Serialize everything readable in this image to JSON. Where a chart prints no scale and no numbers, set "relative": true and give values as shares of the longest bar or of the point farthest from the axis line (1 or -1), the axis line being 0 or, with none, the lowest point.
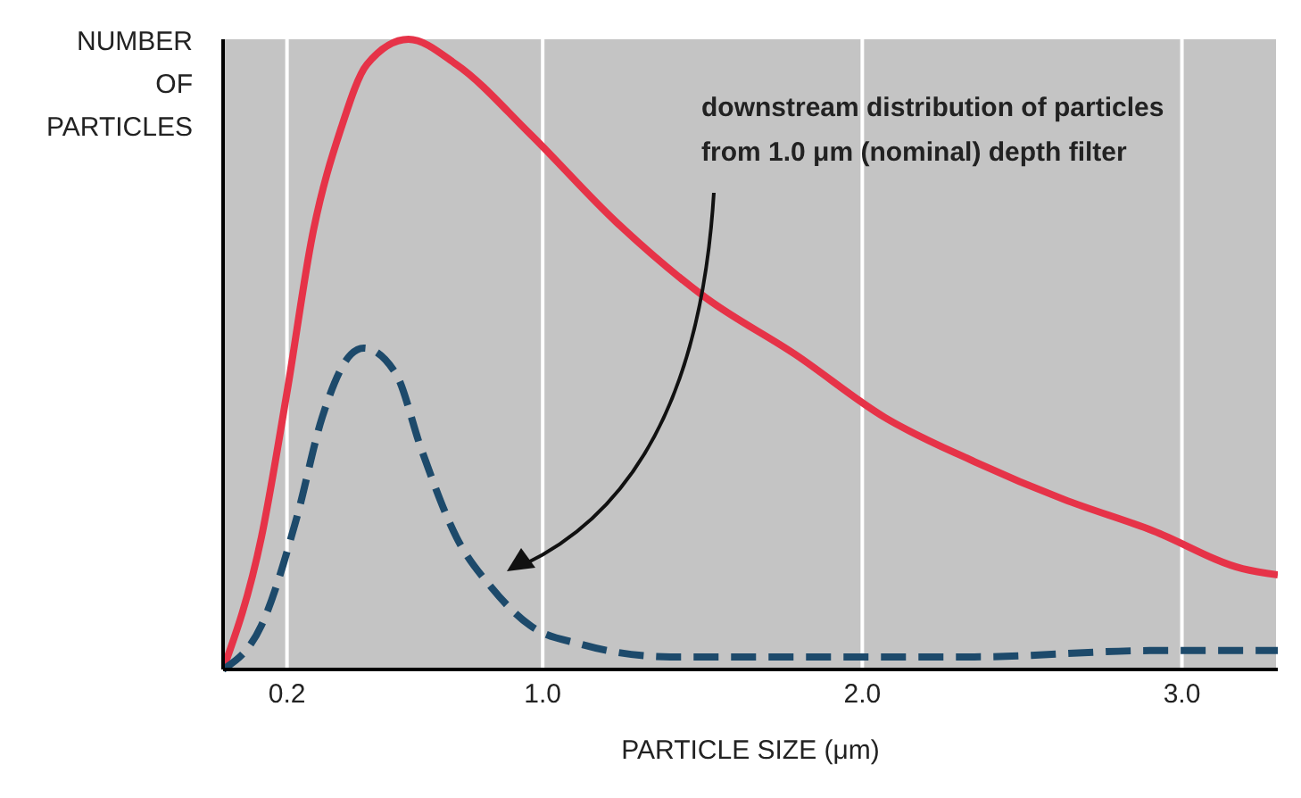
{
  "chart_data": {
    "type": "line",
    "relative": true,
    "xlabel": "PARTICLE SIZE (μm)",
    "ylabel": "NUMBER OF PARTICLES",
    "xlim": [
      0,
      3.3
    ],
    "xticks": [
      0.2,
      {
        "value": 1,
        "label": "1.0"
      },
      {
        "value": 2,
        "label": "2.0"
      },
      {
        "value": 3,
        "label": "3.0"
      }
    ],
    "grid": "x",
    "marker": "none",
    "annotations": [
      "downstream distribution of particles from 1.0 μm (nominal) depth filter"
    ],
    "series": [
      {
        "color": "#e63348",
        "line_style": "solid",
        "x": [
          0,
          0.12,
          0.2,
          0.28,
          0.37,
          0.45,
          0.58,
          0.73,
          0.96,
          1.23,
          1.51,
          1.79,
          2.07,
          2.35,
          2.63,
          2.91,
          3.19,
          3.3
        ],
        "values": [
          0,
          0.21,
          0.44,
          0.69,
          0.86,
          0.96,
          1,
          0.96,
          0.85,
          0.71,
          0.59,
          0.5,
          0.4,
          0.33,
          0.27,
          0.22,
          0.16,
          0.15
        ]
      },
      {
        "color": "#1d4a6b",
        "line_style": "dashed",
        "x": [
          0,
          0.12,
          0.23,
          0.31,
          0.4,
          0.44,
          0.54,
          0.62,
          0.73,
          0.84,
          0.96,
          1.12,
          1.4,
          1.79,
          2.35,
          2.91,
          3.3
        ],
        "values": [
          0,
          0.07,
          0.24,
          0.4,
          0.5,
          0.51,
          0.47,
          0.35,
          0.21,
          0.13,
          0.07,
          0.04,
          0.02,
          0.02,
          0.02,
          0.03,
          0.03
        ]
      }
    ]
  }
}
